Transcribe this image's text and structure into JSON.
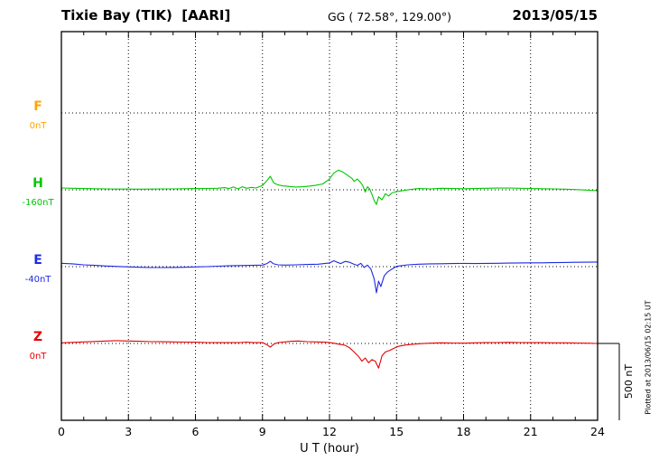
{
  "header": {
    "station": "Tixie Bay (TIK)  [AARI]",
    "coords": "GG ( 72.58°, 129.00°)",
    "date": "2013/05/15"
  },
  "axis": {
    "xlabel": "U T (hour)",
    "xmin": 0,
    "xmax": 24,
    "major_ticks": [
      0,
      3,
      6,
      9,
      12,
      15,
      18,
      21,
      24
    ]
  },
  "scalebar": {
    "label": "500 nT",
    "span_nT": 500
  },
  "footer": {
    "note": "Plotted at 2013/06/15 02:15 UT"
  },
  "chart_data": {
    "type": "line",
    "title": "Magnetogram Tixie Bay (TIK) [AARI] 2013/05/15",
    "xlabel": "U T (hour)",
    "xlim": [
      0,
      24
    ],
    "x_unit": "hour",
    "y_unit": "nT",
    "nT_per_division": 500,
    "grid": "dotted",
    "legend_position": "left-margin",
    "series": [
      {
        "name": "F",
        "baseline_label": "0nT",
        "color": "#FFA500",
        "points": []
      },
      {
        "name": "H",
        "baseline_label": "-160nT",
        "color": "#00C800",
        "points": [
          [
            0,
            12
          ],
          [
            0.5,
            10
          ],
          [
            1,
            8
          ],
          [
            1.5,
            7
          ],
          [
            2,
            6
          ],
          [
            2.5,
            5
          ],
          [
            3,
            5
          ],
          [
            3.5,
            4
          ],
          [
            4,
            5
          ],
          [
            4.5,
            6
          ],
          [
            5,
            6
          ],
          [
            5.5,
            7
          ],
          [
            6,
            8
          ],
          [
            6.5,
            9
          ],
          [
            7,
            10
          ],
          [
            7.3,
            14
          ],
          [
            7.5,
            8
          ],
          [
            7.7,
            18
          ],
          [
            7.9,
            6
          ],
          [
            8.1,
            20
          ],
          [
            8.3,
            10
          ],
          [
            8.5,
            16
          ],
          [
            8.7,
            12
          ],
          [
            9,
            28
          ],
          [
            9.2,
            60
          ],
          [
            9.35,
            88
          ],
          [
            9.5,
            45
          ],
          [
            9.7,
            32
          ],
          [
            9.9,
            26
          ],
          [
            10.2,
            22
          ],
          [
            10.5,
            18
          ],
          [
            10.8,
            20
          ],
          [
            11.1,
            24
          ],
          [
            11.4,
            30
          ],
          [
            11.7,
            38
          ],
          [
            12,
            70
          ],
          [
            12.2,
            110
          ],
          [
            12.4,
            128
          ],
          [
            12.6,
            115
          ],
          [
            12.8,
            95
          ],
          [
            13,
            75
          ],
          [
            13.1,
            55
          ],
          [
            13.25,
            70
          ],
          [
            13.4,
            45
          ],
          [
            13.5,
            25
          ],
          [
            13.6,
            -15
          ],
          [
            13.7,
            20
          ],
          [
            13.8,
            5
          ],
          [
            13.9,
            -30
          ],
          [
            14,
            -70
          ],
          [
            14.1,
            -95
          ],
          [
            14.2,
            -45
          ],
          [
            14.35,
            -65
          ],
          [
            14.5,
            -25
          ],
          [
            14.65,
            -40
          ],
          [
            14.8,
            -20
          ],
          [
            15,
            -12
          ],
          [
            15.3,
            -5
          ],
          [
            15.6,
            2
          ],
          [
            16,
            8
          ],
          [
            16.5,
            6
          ],
          [
            17,
            10
          ],
          [
            17.5,
            9
          ],
          [
            18,
            7
          ],
          [
            18.5,
            8
          ],
          [
            19,
            10
          ],
          [
            19.5,
            11
          ],
          [
            20,
            12
          ],
          [
            20.5,
            10
          ],
          [
            21,
            9
          ],
          [
            21.5,
            7
          ],
          [
            22,
            6
          ],
          [
            22.5,
            4
          ],
          [
            23,
            2
          ],
          [
            23.5,
            -2
          ],
          [
            24,
            -6
          ]
        ]
      },
      {
        "name": "E",
        "baseline_label": "-40nT",
        "color": "#1E28E6",
        "points": [
          [
            0,
            22
          ],
          [
            0.5,
            18
          ],
          [
            1,
            12
          ],
          [
            1.5,
            8
          ],
          [
            2,
            4
          ],
          [
            2.5,
            1
          ],
          [
            3,
            -2
          ],
          [
            3.5,
            -4
          ],
          [
            4,
            -6
          ],
          [
            4.5,
            -6
          ],
          [
            5,
            -5
          ],
          [
            5.5,
            -4
          ],
          [
            6,
            -2
          ],
          [
            6.5,
            0
          ],
          [
            7,
            3
          ],
          [
            7.5,
            5
          ],
          [
            8,
            7
          ],
          [
            8.5,
            8
          ],
          [
            9,
            10
          ],
          [
            9.2,
            20
          ],
          [
            9.35,
            35
          ],
          [
            9.5,
            18
          ],
          [
            9.7,
            12
          ],
          [
            10,
            10
          ],
          [
            10.5,
            12
          ],
          [
            11,
            14
          ],
          [
            11.5,
            16
          ],
          [
            12,
            24
          ],
          [
            12.2,
            38
          ],
          [
            12.35,
            28
          ],
          [
            12.5,
            20
          ],
          [
            12.7,
            34
          ],
          [
            12.9,
            28
          ],
          [
            13.1,
            15
          ],
          [
            13.25,
            8
          ],
          [
            13.4,
            22
          ],
          [
            13.55,
            -5
          ],
          [
            13.7,
            10
          ],
          [
            13.85,
            -15
          ],
          [
            14,
            -80
          ],
          [
            14.1,
            -170
          ],
          [
            14.2,
            -95
          ],
          [
            14.3,
            -130
          ],
          [
            14.45,
            -60
          ],
          [
            14.6,
            -35
          ],
          [
            14.8,
            -15
          ],
          [
            15,
            2
          ],
          [
            15.5,
            12
          ],
          [
            16,
            16
          ],
          [
            16.5,
            18
          ],
          [
            17,
            19
          ],
          [
            17.5,
            20
          ],
          [
            18,
            21
          ],
          [
            18.5,
            20
          ],
          [
            19,
            21
          ],
          [
            19.5,
            22
          ],
          [
            20,
            23
          ],
          [
            20.5,
            24
          ],
          [
            21,
            25
          ],
          [
            21.5,
            25
          ],
          [
            22,
            26
          ],
          [
            22.5,
            27
          ],
          [
            23,
            28
          ],
          [
            23.5,
            29
          ],
          [
            24,
            30
          ]
        ]
      },
      {
        "name": "Z",
        "baseline_label": "0nT",
        "color": "#E60000",
        "points": [
          [
            0,
            4
          ],
          [
            0.5,
            7
          ],
          [
            1,
            10
          ],
          [
            1.5,
            13
          ],
          [
            2,
            16
          ],
          [
            2.5,
            18
          ],
          [
            3,
            16
          ],
          [
            3.5,
            14
          ],
          [
            4,
            12
          ],
          [
            4.5,
            11
          ],
          [
            5,
            10
          ],
          [
            5.5,
            9
          ],
          [
            6,
            8
          ],
          [
            6.5,
            6
          ],
          [
            7,
            5
          ],
          [
            7.5,
            5
          ],
          [
            8,
            6
          ],
          [
            8.3,
            9
          ],
          [
            8.6,
            5
          ],
          [
            9,
            6
          ],
          [
            9.2,
            -8
          ],
          [
            9.35,
            -24
          ],
          [
            9.5,
            -5
          ],
          [
            9.7,
            6
          ],
          [
            10,
            10
          ],
          [
            10.3,
            14
          ],
          [
            10.6,
            16
          ],
          [
            11,
            12
          ],
          [
            11.4,
            10
          ],
          [
            11.8,
            8
          ],
          [
            12.1,
            4
          ],
          [
            12.4,
            -4
          ],
          [
            12.7,
            -12
          ],
          [
            12.9,
            -28
          ],
          [
            13.1,
            -55
          ],
          [
            13.3,
            -85
          ],
          [
            13.45,
            -115
          ],
          [
            13.6,
            -95
          ],
          [
            13.75,
            -125
          ],
          [
            13.9,
            -105
          ],
          [
            14.05,
            -115
          ],
          [
            14.2,
            -160
          ],
          [
            14.35,
            -80
          ],
          [
            14.5,
            -55
          ],
          [
            14.7,
            -45
          ],
          [
            14.9,
            -30
          ],
          [
            15.1,
            -18
          ],
          [
            15.4,
            -10
          ],
          [
            15.7,
            -5
          ],
          [
            16,
            -2
          ],
          [
            16.5,
            2
          ],
          [
            17,
            4
          ],
          [
            17.5,
            3
          ],
          [
            18,
            2
          ],
          [
            18.5,
            4
          ],
          [
            19,
            5
          ],
          [
            19.5,
            6
          ],
          [
            20,
            7
          ],
          [
            20.5,
            6
          ],
          [
            21,
            5
          ],
          [
            21.5,
            5
          ],
          [
            22,
            4
          ],
          [
            22.5,
            4
          ],
          [
            23,
            3
          ],
          [
            23.5,
            2
          ],
          [
            24,
            0
          ]
        ]
      }
    ]
  }
}
